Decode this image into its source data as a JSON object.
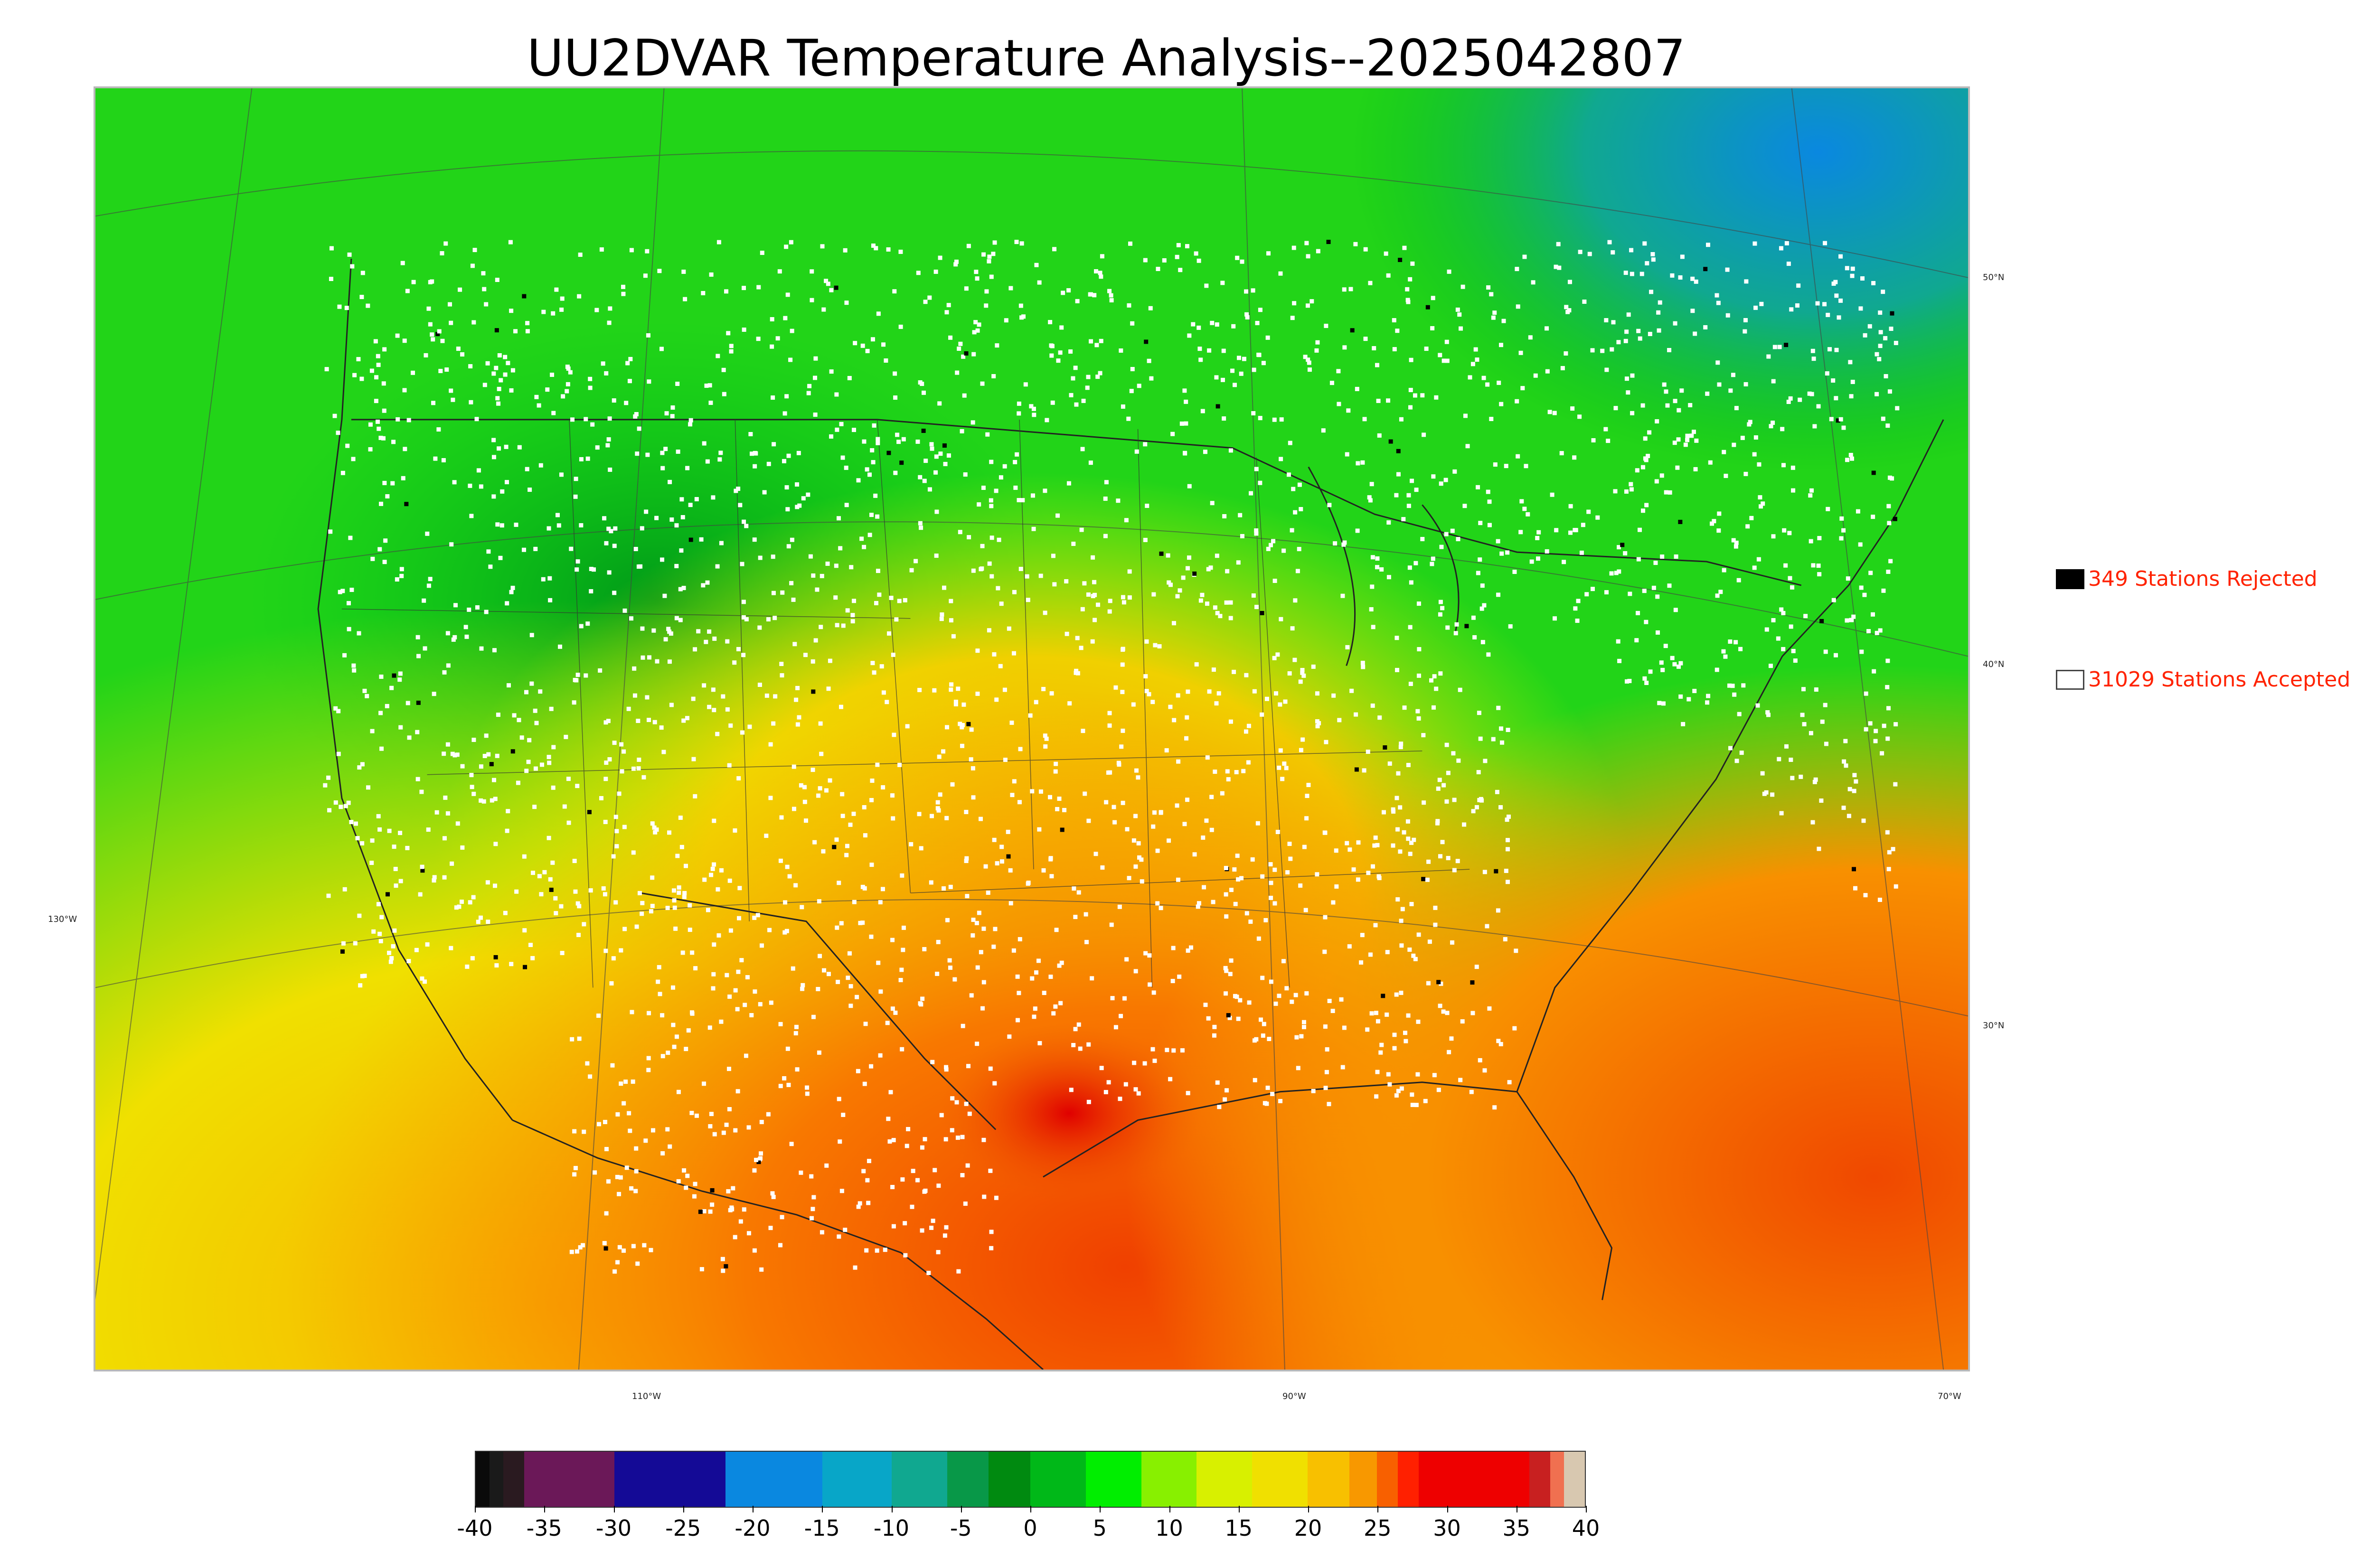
{
  "title": "UU2DVAR Temperature Analysis--2025042807",
  "map": {
    "lat_labels": [
      "50°N",
      "40°N",
      "30°N"
    ],
    "lon_labels": [
      "130°W",
      "110°W",
      "90°W",
      "70°W"
    ],
    "accepted_station_color": "#ffffff",
    "rejected_station_color": "#000000"
  },
  "legend": {
    "rejected": {
      "label": "349 Stations Rejected",
      "swatch_color": "#000000"
    },
    "accepted": {
      "label": "31029 Stations Accepted",
      "swatch_color": "#ffffff"
    }
  },
  "colorbar": {
    "min": -40,
    "max": 40,
    "tick_labels": [
      "-40",
      "-35",
      "-30",
      "-25",
      "-20",
      "-15",
      "-10",
      "-5",
      "0",
      "5",
      "10",
      "15",
      "20",
      "25",
      "30",
      "35",
      "40"
    ],
    "color_stops": [
      {
        "from": -40,
        "to": -39,
        "color": "#0a0a0a"
      },
      {
        "from": -39,
        "to": -38,
        "color": "#1a1a1a"
      },
      {
        "from": -38,
        "to": -36.5,
        "color": "#2a1a20"
      },
      {
        "from": -36.5,
        "to": -30,
        "color": "#6b1858"
      },
      {
        "from": -30,
        "to": -22,
        "color": "#140a96"
      },
      {
        "from": -22,
        "to": -15,
        "color": "#0a88e0"
      },
      {
        "from": -15,
        "to": -10,
        "color": "#08a6c8"
      },
      {
        "from": -10,
        "to": -6,
        "color": "#10a890"
      },
      {
        "from": -6,
        "to": -3,
        "color": "#089848"
      },
      {
        "from": -3,
        "to": 0,
        "color": "#008a10"
      },
      {
        "from": 0,
        "to": 4,
        "color": "#00b818"
      },
      {
        "from": 4,
        "to": 8,
        "color": "#00ee00"
      },
      {
        "from": 8,
        "to": 12,
        "color": "#88f000"
      },
      {
        "from": 12,
        "to": 16,
        "color": "#d8f000"
      },
      {
        "from": 16,
        "to": 20,
        "color": "#f0e000"
      },
      {
        "from": 20,
        "to": 23,
        "color": "#f8c000"
      },
      {
        "from": 23,
        "to": 25,
        "color": "#f89800"
      },
      {
        "from": 25,
        "to": 26.5,
        "color": "#f86000"
      },
      {
        "from": 26.5,
        "to": 28,
        "color": "#ff2000"
      },
      {
        "from": 28,
        "to": 36,
        "color": "#ee0000"
      },
      {
        "from": 36,
        "to": 37.5,
        "color": "#c82020"
      },
      {
        "from": 37.5,
        "to": 38.5,
        "color": "#f07050"
      },
      {
        "from": 38.5,
        "to": 40,
        "color": "#d8c8b0"
      }
    ]
  }
}
